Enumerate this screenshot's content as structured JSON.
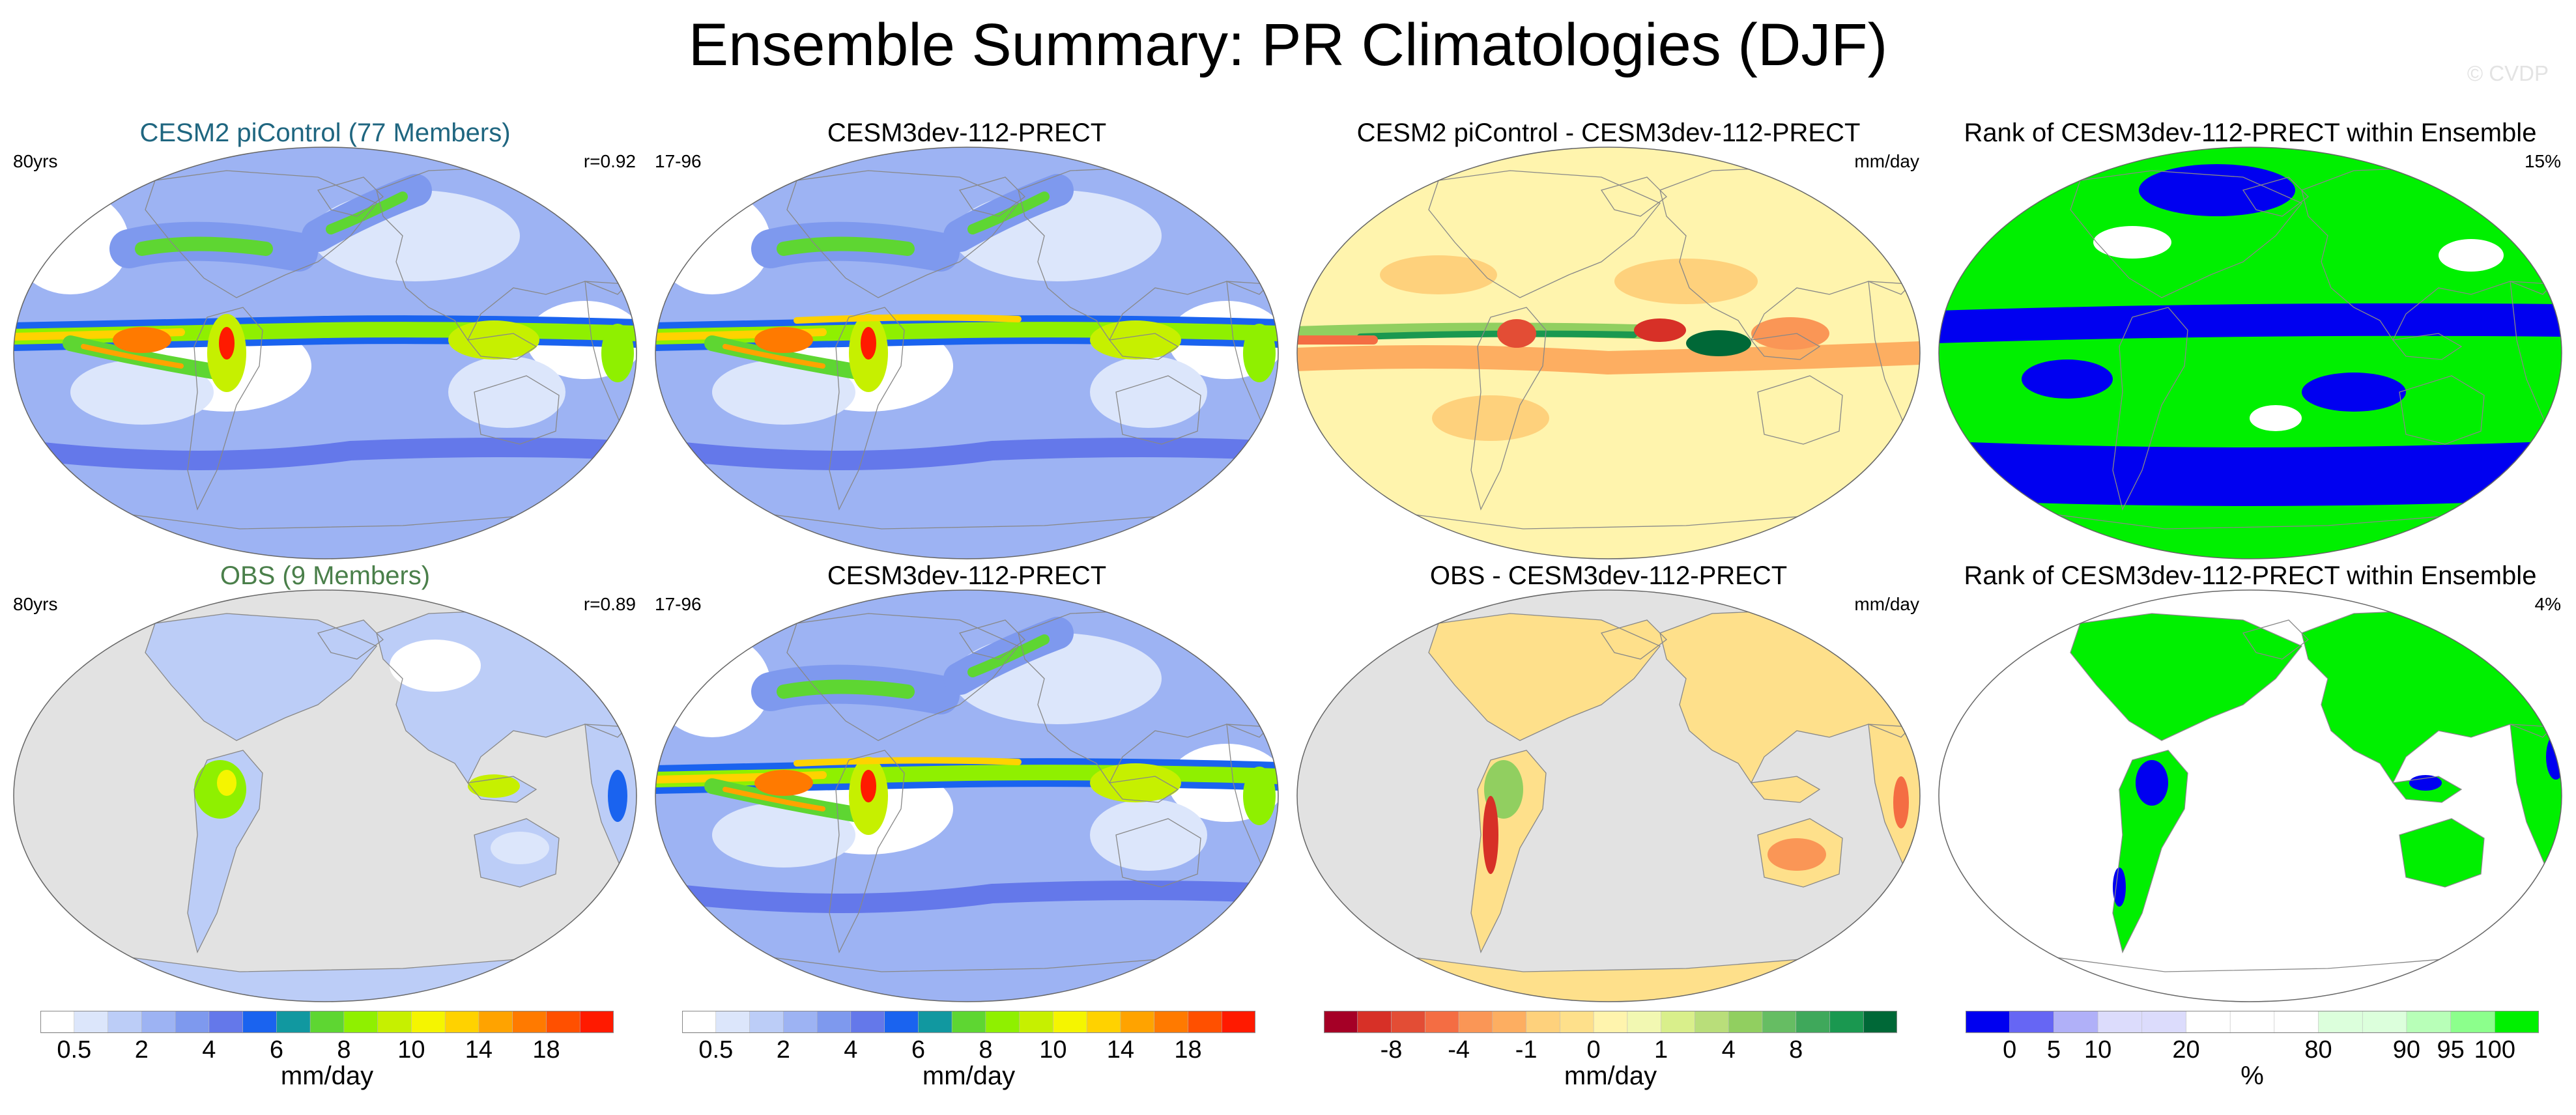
{
  "figure": {
    "title": "Ensemble Summary: PR Climatologies (DJF)",
    "copyright": "© CVDP"
  },
  "colors": {
    "land_mask": "#e2e2e2",
    "ensemble_title": "#1f6680",
    "obs_title": "#4a7f4a"
  },
  "chart_data": [
    {
      "type": "heatmap",
      "panel": "ensemble-mean",
      "title": "CESM2 piControl (77 Members)",
      "left_note": "80yrs",
      "right_note": "r=0.92",
      "variable": "PR",
      "season": "DJF",
      "units": "mm/day",
      "projection": "Robinson, Pacific-centered",
      "colorbar": "precip"
    },
    {
      "type": "heatmap",
      "panel": "model-top",
      "title": "CESM3dev-112-PRECT",
      "left_note": "17-96",
      "right_note": "",
      "variable": "PR",
      "season": "DJF",
      "units": "mm/day",
      "colorbar": "precip"
    },
    {
      "type": "heatmap",
      "panel": "difference-ensemble",
      "title": "CESM2 piControl - CESM3dev-112-PRECT",
      "left_note": "",
      "right_note": "mm/day",
      "colorbar": "diff"
    },
    {
      "type": "heatmap",
      "panel": "rank-ensemble",
      "title": "Rank of CESM3dev-112-PRECT within Ensemble",
      "left_note": "",
      "right_note": "15%",
      "colorbar": "rank"
    },
    {
      "type": "heatmap",
      "panel": "obs",
      "title": "OBS (9 Members)",
      "left_note": "80yrs",
      "right_note": "r=0.89",
      "mask": "land only",
      "colorbar": "precip"
    },
    {
      "type": "heatmap",
      "panel": "model-bottom",
      "title": "CESM3dev-112-PRECT",
      "left_note": "17-96",
      "right_note": "",
      "colorbar": "precip"
    },
    {
      "type": "heatmap",
      "panel": "difference-obs",
      "title": "OBS - CESM3dev-112-PRECT",
      "left_note": "",
      "right_note": "mm/day",
      "mask": "land only",
      "colorbar": "diff"
    },
    {
      "type": "heatmap",
      "panel": "rank-obs",
      "title": "Rank of CESM3dev-112-PRECT within Ensemble",
      "left_note": "",
      "right_note": "4%",
      "mask": "land only",
      "colorbar": "rank"
    }
  ],
  "colorbars": {
    "precip": {
      "label": "mm/day",
      "colors": [
        "#ffffff",
        "#dce6fb",
        "#bccdf7",
        "#9db3f3",
        "#7e99ee",
        "#6478ea",
        "#1a63ef",
        "#1198a0",
        "#5ed632",
        "#8ff000",
        "#c6f000",
        "#f5f500",
        "#ffd200",
        "#ffa300",
        "#ff7a00",
        "#ff5000",
        "#ff1a00"
      ],
      "ticks": [
        "0.5",
        "2",
        "4",
        "6",
        "8",
        "10",
        "14",
        "18"
      ],
      "tick_edges": [
        1,
        3,
        5,
        7,
        9,
        11,
        13,
        15
      ]
    },
    "diff": {
      "label": "mm/day",
      "colors": [
        "#a50026",
        "#d73027",
        "#e34d35",
        "#f46d43",
        "#fa9656",
        "#fdae61",
        "#fed17c",
        "#fee08b",
        "#fff4ad",
        "#f2f8b2",
        "#d9ef8b",
        "#b9de7a",
        "#91cf60",
        "#66bd63",
        "#3fa85b",
        "#1a9850",
        "#006837"
      ],
      "ticks": [
        "-8",
        "-4",
        "-1",
        "0",
        "1",
        "4",
        "8"
      ],
      "tick_edges": [
        2,
        4,
        6,
        8,
        10,
        12,
        14
      ]
    },
    "rank": {
      "label": "%",
      "colors": [
        "#0000f0",
        "#6666f4",
        "#b0b0f8",
        "#dcdcfc",
        "#dcdcfc",
        "#ffffff",
        "#ffffff",
        "#ffffff",
        "#dcffdc",
        "#dcffdc",
        "#b8ffb8",
        "#8cff8c",
        "#00f000"
      ],
      "ticks": [
        "0",
        "5",
        "10",
        "20",
        "80",
        "90",
        "95",
        "100"
      ],
      "tick_edges": [
        1,
        2,
        3,
        5,
        8,
        10,
        11,
        12
      ]
    }
  }
}
